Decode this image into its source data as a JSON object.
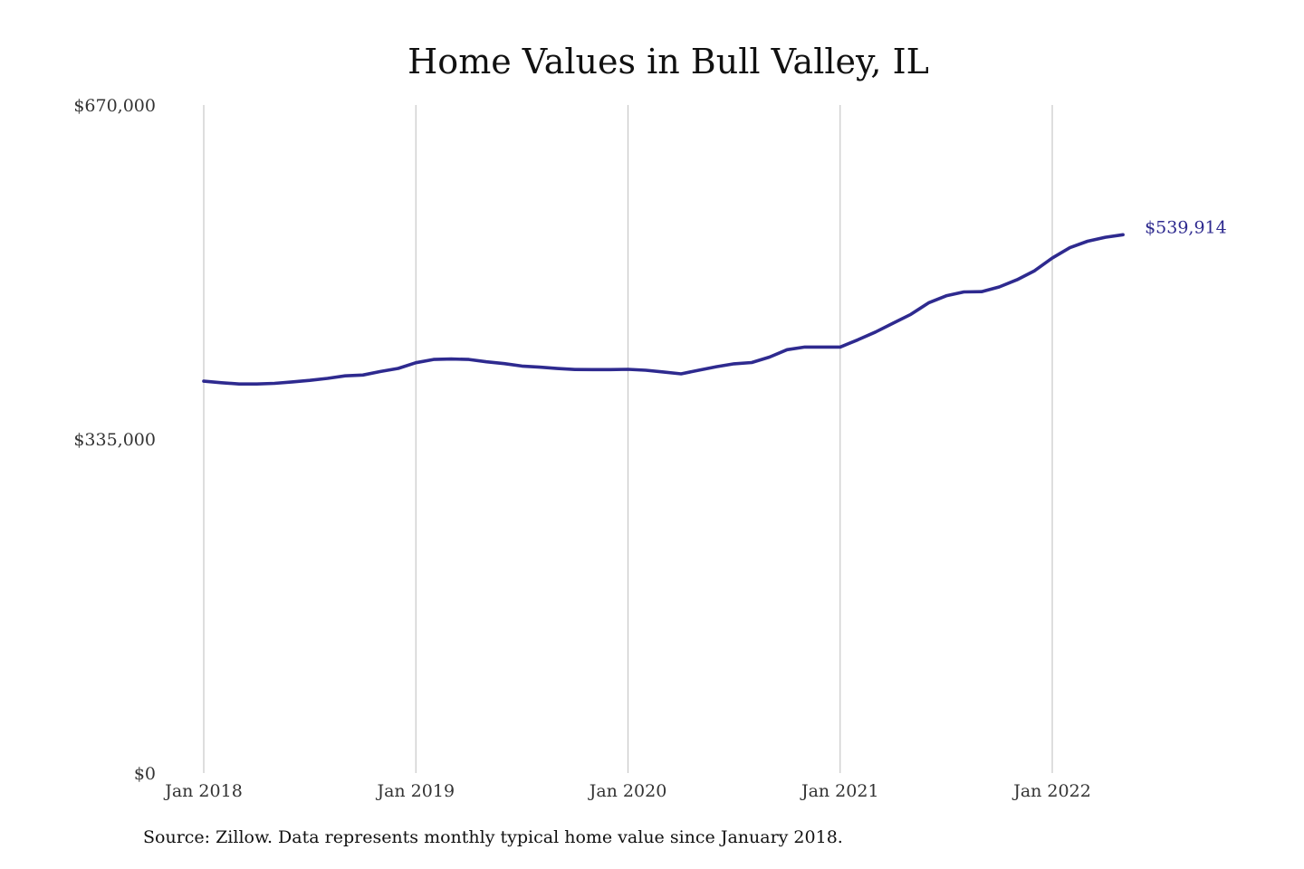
{
  "chart_data": {
    "type": "line",
    "title": "Home Values in Bull Valley, IL",
    "xlabel": "",
    "ylabel": "",
    "ylim": [
      0,
      670000
    ],
    "y_ticks": [
      {
        "value": 0,
        "label": "$0"
      },
      {
        "value": 335000,
        "label": "$335,000"
      },
      {
        "value": 670000,
        "label": "$670,000"
      }
    ],
    "x_ticks": [
      {
        "value": "2018-01",
        "label": "Jan 2018"
      },
      {
        "value": "2019-01",
        "label": "Jan 2019"
      },
      {
        "value": "2020-01",
        "label": "Jan 2020"
      },
      {
        "value": "2021-01",
        "label": "Jan 2021"
      },
      {
        "value": "2022-01",
        "label": "Jan 2022"
      }
    ],
    "grid": {
      "vertical": true,
      "horizontal": false
    },
    "line_color": "#2e2a8f",
    "series": [
      {
        "x": [
          "2018-01",
          "2018-02",
          "2018-03",
          "2018-04",
          "2018-05",
          "2018-06",
          "2018-07",
          "2018-08",
          "2018-09",
          "2018-10",
          "2018-11",
          "2018-12",
          "2019-01",
          "2019-02",
          "2019-03",
          "2019-04",
          "2019-05",
          "2019-06",
          "2019-07",
          "2019-08",
          "2019-09",
          "2019-10",
          "2019-11",
          "2019-12",
          "2020-01",
          "2020-02",
          "2020-03",
          "2020-04",
          "2020-05",
          "2020-06",
          "2020-07",
          "2020-08",
          "2020-09",
          "2020-10",
          "2020-11",
          "2020-12",
          "2021-01",
          "2021-02",
          "2021-03",
          "2021-04",
          "2021-05",
          "2021-06",
          "2021-07",
          "2021-08",
          "2021-09",
          "2021-10",
          "2021-11",
          "2021-12",
          "2022-01",
          "2022-02",
          "2022-03",
          "2022-04",
          "2022-05"
        ],
        "values": [
          393000,
          391500,
          390200,
          390200,
          390800,
          392300,
          393800,
          395800,
          398400,
          399200,
          402700,
          405800,
          411500,
          414800,
          415300,
          414800,
          412400,
          410600,
          408200,
          407100,
          405700,
          404700,
          404600,
          404600,
          404900,
          404000,
          402300,
          400400,
          404000,
          407500,
          410400,
          411700,
          417200,
          424600,
          427200,
          427200,
          427200,
          434500,
          442300,
          451200,
          460000,
          471500,
          478600,
          482500,
          482800,
          487500,
          494700,
          503800,
          516500,
          526900,
          533400,
          537400,
          539914
        ]
      }
    ],
    "annotations": [
      {
        "x": "2022-05",
        "value": 539914,
        "text": "$539,914"
      }
    ]
  },
  "source_note": "Source: Zillow. Data represents monthly typical home value since January 2018."
}
